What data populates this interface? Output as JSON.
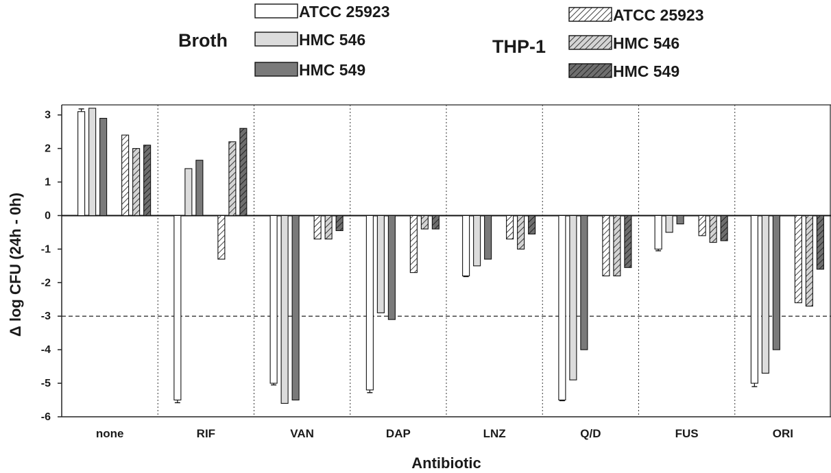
{
  "chart_data": {
    "type": "bar",
    "xlabel": "Antibiotic",
    "ylabel": "Δ log CFU (24h - 0h)",
    "ylim": [
      -6,
      3.3
    ],
    "yticks": [
      3,
      2,
      1,
      0,
      -1,
      -2,
      -3,
      -4,
      -5,
      -6
    ],
    "reference_line": -3,
    "grid": false,
    "categories": [
      "none",
      "RIF",
      "VAN",
      "DAP",
      "LNZ",
      "Q/D",
      "FUS",
      "ORI"
    ],
    "legend_groups": [
      {
        "label": "Broth",
        "placement": "top-left"
      },
      {
        "label": "THP-1",
        "placement": "top-right"
      }
    ],
    "series": [
      {
        "name": "ATCC 25923",
        "group": "Broth",
        "fill": "#ffffff",
        "pattern": false,
        "values": [
          3.1,
          -5.5,
          -5.0,
          -5.2,
          -1.8,
          -5.5,
          -1.0,
          -5.0
        ],
        "errors": [
          0.08,
          0.08,
          0.05,
          0.08,
          0.02,
          0.02,
          0.05,
          0.1
        ]
      },
      {
        "name": "HMC 546",
        "group": "Broth",
        "fill": "#dcdcdc",
        "pattern": false,
        "values": [
          3.2,
          1.4,
          -5.6,
          -2.9,
          -1.5,
          -4.9,
          -0.5,
          -4.7
        ],
        "errors": [
          0,
          0,
          0,
          0,
          0,
          0,
          0,
          0
        ]
      },
      {
        "name": "HMC 549",
        "group": "Broth",
        "fill": "#7a7a7a",
        "pattern": false,
        "values": [
          2.9,
          1.65,
          -5.5,
          -3.1,
          -1.3,
          -4.0,
          -0.25,
          -4.0
        ],
        "errors": [
          0,
          0,
          0,
          0,
          0,
          0,
          0,
          0
        ]
      },
      {
        "name": "ATCC 25923",
        "group": "THP-1",
        "fill": "#ffffff",
        "pattern": true,
        "values": [
          2.4,
          -1.3,
          -0.7,
          -1.7,
          -0.7,
          -1.8,
          -0.6,
          -2.6
        ],
        "errors": [
          0,
          0,
          0,
          0,
          0,
          0,
          0,
          0
        ]
      },
      {
        "name": "HMC 546",
        "group": "THP-1",
        "fill": "#d4d4d4",
        "pattern": true,
        "values": [
          2.0,
          2.2,
          -0.7,
          -0.4,
          -1.0,
          -1.8,
          -0.8,
          -2.7
        ],
        "errors": [
          0,
          0,
          0,
          0,
          0,
          0,
          0,
          0
        ]
      },
      {
        "name": "HMC 549",
        "group": "THP-1",
        "fill": "#6e6e6e",
        "pattern": true,
        "values": [
          2.1,
          2.6,
          -0.45,
          -0.4,
          -0.55,
          -1.55,
          -0.75,
          -1.6
        ],
        "errors": [
          0,
          0,
          0,
          0,
          0,
          0,
          0,
          0
        ]
      }
    ]
  }
}
